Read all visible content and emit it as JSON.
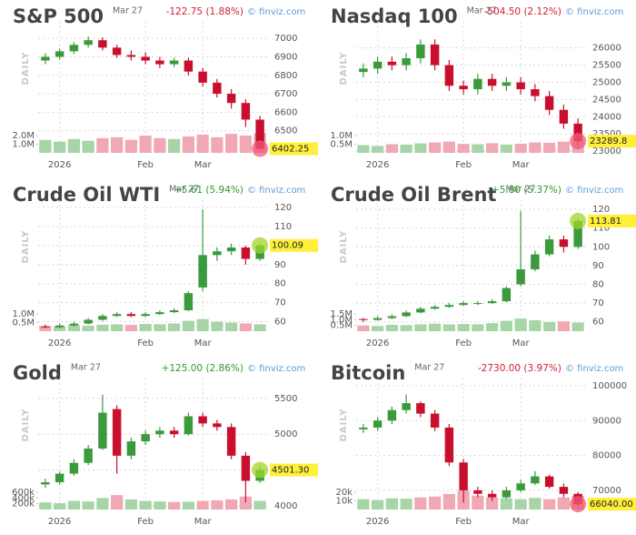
{
  "chart_data": [
    {
      "type": "candlestick",
      "title": "S&P 500",
      "date": "Mar 27",
      "change": "-122.75 (1.88%)",
      "change_color": "#d0203a",
      "source": "© finviz.com",
      "period": "DAILY",
      "up_color": "#3b9a3b",
      "down_color": "#c8102e",
      "vol_up_color": "#a8d5a8",
      "vol_down_color": "#f0a8b4",
      "highlight_color": "#f25a78",
      "last_label": "6402.25",
      "categories": [
        null,
        "2026",
        null,
        null,
        null,
        null,
        null,
        "Feb",
        null,
        null,
        null,
        "Mar",
        null,
        null,
        null,
        null
      ],
      "open": [
        6880,
        6900,
        6930,
        6965,
        6990,
        6950,
        6910,
        6900,
        6880,
        6860,
        6880,
        6820,
        6760,
        6700,
        6650,
        6560
      ],
      "high": [
        6920,
        6945,
        6980,
        7010,
        7005,
        6965,
        6935,
        6925,
        6900,
        6895,
        6895,
        6840,
        6780,
        6725,
        6670,
        6580
      ],
      "low": [
        6860,
        6885,
        6915,
        6950,
        6935,
        6895,
        6880,
        6860,
        6840,
        6845,
        6800,
        6740,
        6680,
        6620,
        6520,
        6390
      ],
      "close": [
        6900,
        6930,
        6965,
        6990,
        6950,
        6910,
        6900,
        6880,
        6860,
        6880,
        6820,
        6760,
        6700,
        6650,
        6560,
        6402.25
      ],
      "volume": [
        1500000,
        1300000,
        1600000,
        1400000,
        1700000,
        1800000,
        1500000,
        2000000,
        1700000,
        1600000,
        1900000,
        2100000,
        1800000,
        2200000,
        2000000,
        2300000
      ],
      "ylim": [
        6380,
        7060
      ],
      "yticks": [
        6500,
        6600,
        6700,
        6800,
        6900,
        7000
      ],
      "vol_ylim": [
        0,
        4000000
      ],
      "vol_yticks": [
        {
          "value": 1000000,
          "label": "1.0M"
        },
        {
          "value": 2000000,
          "label": "2.0M"
        }
      ]
    },
    {
      "type": "candlestick",
      "title": "Nasdaq 100",
      "date": "Mar 27",
      "change": "-504.50 (2.12%)",
      "change_color": "#d0203a",
      "source": "© finviz.com",
      "period": "DAILY",
      "up_color": "#3b9a3b",
      "down_color": "#c8102e",
      "vol_up_color": "#a8d5a8",
      "vol_down_color": "#f0a8b4",
      "highlight_color": "#f25a78",
      "last_label": "23289.8",
      "categories": [
        null,
        "2026",
        null,
        null,
        null,
        null,
        null,
        "Feb",
        null,
        null,
        null,
        "Mar",
        null,
        null,
        null,
        null
      ],
      "open": [
        25300,
        25400,
        25600,
        25500,
        25700,
        26100,
        25500,
        24900,
        24800,
        25100,
        24900,
        25000,
        24800,
        24600,
        24200,
        23800
      ],
      "high": [
        25550,
        25750,
        25750,
        25850,
        26250,
        26250,
        25650,
        25050,
        25250,
        25250,
        25150,
        25150,
        24950,
        24750,
        24350,
        23950
      ],
      "low": [
        25150,
        25250,
        25350,
        25350,
        25550,
        25350,
        24750,
        24650,
        24650,
        24750,
        24750,
        24650,
        24450,
        24050,
        23650,
        23150
      ],
      "close": [
        25400,
        25600,
        25500,
        25700,
        26100,
        25500,
        24900,
        24800,
        25100,
        24900,
        25000,
        24800,
        24600,
        24200,
        23800,
        23289.8
      ],
      "volume": [
        450000,
        400000,
        500000,
        480000,
        550000,
        600000,
        650000,
        520000,
        500000,
        560000,
        480000,
        530000,
        600000,
        580000,
        650000,
        700000
      ],
      "ylim": [
        22950,
        26600
      ],
      "yticks": [
        23000,
        23500,
        24000,
        24500,
        25000,
        25500,
        26000
      ],
      "vol_ylim": [
        0,
        2000000
      ],
      "vol_yticks": [
        {
          "value": 500000,
          "label": "0.5M"
        },
        {
          "value": 1000000,
          "label": "1.0M"
        }
      ]
    },
    {
      "type": "candlestick",
      "title": "Crude Oil WTI",
      "date": "Mar 27",
      "change": "+5.61 (5.94%)",
      "change_color": "#2e9a2e",
      "source": "© finviz.com",
      "period": "DAILY",
      "up_color": "#3b9a3b",
      "down_color": "#c8102e",
      "vol_up_color": "#a8d5a8",
      "vol_down_color": "#f0a8b4",
      "highlight_color": "#9fd62a",
      "last_label": "100.09",
      "categories": [
        null,
        "2026",
        null,
        null,
        null,
        null,
        null,
        "Feb",
        null,
        null,
        null,
        "Mar",
        null,
        null,
        null,
        null
      ],
      "open": [
        57.5,
        57,
        58,
        59,
        61,
        63,
        64,
        63,
        64,
        65,
        66,
        78,
        95,
        97,
        99,
        93
      ],
      "high": [
        58.5,
        59,
        60,
        62,
        64,
        65,
        65,
        65,
        66,
        67,
        76,
        119,
        99,
        101,
        100,
        101
      ],
      "low": [
        56.5,
        56.5,
        57.5,
        58.5,
        60.5,
        62.5,
        62.5,
        62.5,
        63.5,
        64.5,
        65.5,
        76,
        92,
        95,
        90,
        92
      ],
      "close": [
        57,
        58,
        59,
        61,
        63,
        64,
        63,
        64,
        65,
        66,
        75,
        95,
        97,
        99,
        93,
        100.09
      ],
      "volume": [
        300000,
        280000,
        350000,
        320000,
        380000,
        400000,
        360000,
        420000,
        400000,
        450000,
        600000,
        700000,
        550000,
        500000,
        450000,
        400000
      ],
      "ylim": [
        55,
        121
      ],
      "yticks": [
        60,
        70,
        80,
        90,
        100,
        110,
        120
      ],
      "vol_ylim": [
        0,
        2000000
      ],
      "vol_yticks": [
        {
          "value": 500000,
          "label": "0.5M"
        },
        {
          "value": 1000000,
          "label": "1.0M"
        }
      ]
    },
    {
      "type": "candlestick",
      "title": "Crude Oil Brent",
      "date": "Mar 27",
      "change": "+5.80 (5.37%)",
      "change_color": "#2e9a2e",
      "source": "© finviz.com",
      "period": "DAILY",
      "up_color": "#3b9a3b",
      "down_color": "#c8102e",
      "vol_up_color": "#a8d5a8",
      "vol_down_color": "#f0a8b4",
      "highlight_color": "#9fd62a",
      "last_label": "113.81",
      "categories": [
        null,
        "2026",
        null,
        null,
        null,
        null,
        null,
        "Feb",
        null,
        null,
        null,
        "Mar",
        null,
        null,
        null,
        null
      ],
      "open": [
        61.5,
        61,
        62,
        63,
        65,
        67,
        68,
        69,
        70,
        70,
        71,
        80,
        88,
        96,
        104,
        100
      ],
      "high": [
        62,
        63,
        64,
        66,
        68,
        69,
        70,
        71,
        71,
        72,
        79,
        119,
        98,
        106,
        106,
        115
      ],
      "low": [
        60,
        60.5,
        61.5,
        62.5,
        64.5,
        66.5,
        67.5,
        68.5,
        69,
        69.5,
        70.5,
        79,
        87,
        95,
        97,
        99
      ],
      "close": [
        61,
        62,
        63,
        65,
        67,
        68,
        69,
        70,
        70,
        71,
        78,
        88,
        96,
        104,
        100,
        113.81
      ],
      "volume": [
        500000,
        450000,
        550000,
        520000,
        600000,
        650000,
        580000,
        620000,
        600000,
        700000,
        900000,
        1100000,
        950000,
        800000,
        850000,
        750000
      ],
      "ylim": [
        55,
        122
      ],
      "yticks": [
        60,
        70,
        80,
        90,
        100,
        110,
        120
      ],
      "vol_ylim": [
        0,
        3000000
      ],
      "vol_yticks": [
        {
          "value": 500000,
          "label": "0.5M"
        },
        {
          "value": 1000000,
          "label": "1.0M"
        },
        {
          "value": 1500000,
          "label": "1.5M"
        }
      ]
    },
    {
      "type": "candlestick",
      "title": "Gold",
      "date": "Mar 27",
      "change": "+125.00 (2.86%)",
      "change_color": "#2e9a2e",
      "source": "© finviz.com",
      "period": "DAILY",
      "up_color": "#3b9a3b",
      "down_color": "#c8102e",
      "vol_up_color": "#a8d5a8",
      "vol_down_color": "#f0a8b4",
      "highlight_color": "#9fd62a",
      "last_label": "4501.30",
      "categories": [
        null,
        "2026",
        null,
        null,
        null,
        null,
        null,
        "Feb",
        null,
        null,
        null,
        "Mar",
        null,
        null,
        null,
        null
      ],
      "open": [
        4300,
        4330,
        4450,
        4600,
        4800,
        5350,
        4700,
        4900,
        5000,
        5050,
        5000,
        5250,
        5150,
        5100,
        4700,
        4350
      ],
      "high": [
        4380,
        4480,
        4650,
        4850,
        5550,
        5400,
        4950,
        5050,
        5100,
        5100,
        5300,
        5300,
        5200,
        5150,
        4750,
        4550
      ],
      "low": [
        4250,
        4300,
        4420,
        4570,
        4780,
        4450,
        4650,
        4850,
        4950,
        4950,
        4980,
        5100,
        5050,
        4650,
        4050,
        4320
      ],
      "close": [
        4330,
        4450,
        4600,
        4800,
        5300,
        4700,
        4900,
        5000,
        5050,
        5000,
        5250,
        5150,
        5100,
        4700,
        4350,
        4501.3
      ],
      "volume": [
        250000,
        220000,
        300000,
        280000,
        400000,
        500000,
        350000,
        300000,
        280000,
        260000,
        270000,
        300000,
        320000,
        350000,
        450000,
        300000
      ],
      "ylim": [
        3950,
        5700
      ],
      "yticks": [
        4000,
        4500,
        5000,
        5500
      ],
      "vol_ylim": [
        0,
        1200000
      ],
      "vol_yticks": [
        {
          "value": 200000,
          "label": "200k"
        },
        {
          "value": 400000,
          "label": "400k"
        },
        {
          "value": 600000,
          "label": "600k"
        }
      ]
    },
    {
      "type": "candlestick",
      "title": "Bitcoin",
      "date": "Mar 27",
      "change": "-2730.00 (3.97%)",
      "change_color": "#d0203a",
      "source": "© finviz.com",
      "period": "DAILY",
      "up_color": "#3b9a3b",
      "down_color": "#c8102e",
      "vol_up_color": "#a8d5a8",
      "vol_down_color": "#f0a8b4",
      "highlight_color": "#f25a78",
      "last_label": "66040.00",
      "categories": [
        null,
        "2026",
        null,
        null,
        null,
        null,
        null,
        "Feb",
        null,
        null,
        null,
        "Mar",
        null,
        null,
        null,
        null
      ],
      "open": [
        87500,
        88000,
        90000,
        93000,
        95000,
        92000,
        88000,
        78000,
        70000,
        69000,
        68000,
        70000,
        72000,
        74000,
        71000,
        69000
      ],
      "high": [
        89000,
        91000,
        94000,
        97500,
        95500,
        93000,
        89000,
        79000,
        71000,
        70000,
        71000,
        73000,
        75500,
        74500,
        72000,
        69500
      ],
      "low": [
        86500,
        87000,
        89000,
        92000,
        91000,
        87000,
        77000,
        66500,
        68000,
        67000,
        67500,
        69500,
        71500,
        70500,
        68000,
        65500
      ],
      "close": [
        88000,
        90000,
        93000,
        95000,
        92000,
        88000,
        78000,
        70000,
        69000,
        68000,
        70000,
        72000,
        74000,
        71000,
        69000,
        66040
      ],
      "volume": [
        12000,
        11000,
        13000,
        12500,
        14000,
        15000,
        18000,
        22000,
        16000,
        14000,
        13000,
        12000,
        13500,
        12000,
        14000,
        16000
      ],
      "ylim": [
        64500,
        100500
      ],
      "yticks": [
        70000,
        80000,
        90000,
        100000
      ],
      "vol_ylim": [
        0,
        40000
      ],
      "vol_yticks": [
        {
          "value": 10000,
          "label": "10k"
        },
        {
          "value": 20000,
          "label": "20k"
        }
      ]
    }
  ]
}
